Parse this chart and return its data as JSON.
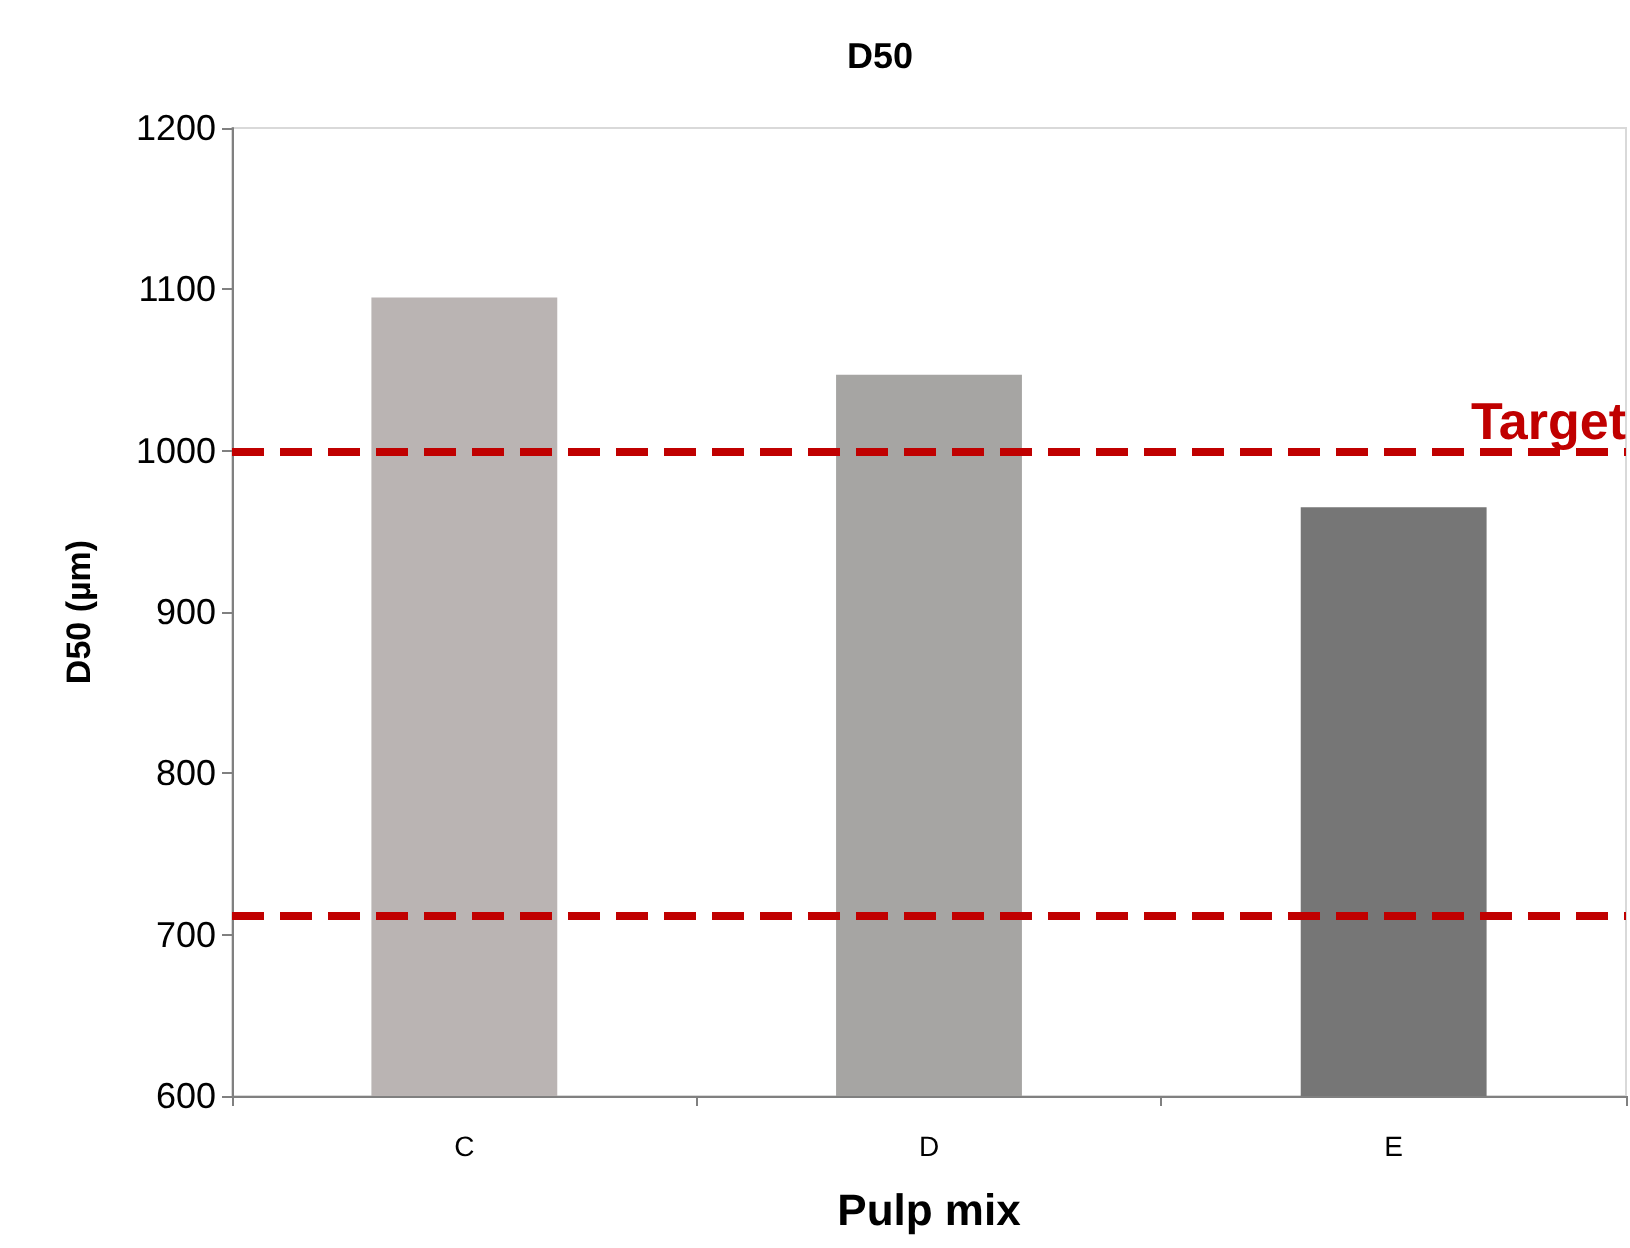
{
  "chart_data": {
    "type": "bar",
    "title": "D50",
    "xlabel": "Pulp mix",
    "ylabel": "D50 (µm)",
    "categories": [
      "C",
      "D",
      "E"
    ],
    "values": [
      1095,
      1047,
      965
    ],
    "colors": [
      "#bab4b3",
      "#a6a5a3",
      "#767676"
    ],
    "ylim": [
      600,
      1200
    ],
    "yticks": [
      600,
      700,
      800,
      900,
      1000,
      1100,
      1200
    ],
    "grid": false,
    "ref_lines": [
      {
        "axis": "y",
        "value": 1000,
        "label": "Target",
        "color": "#c00000",
        "line_style": "dashed"
      },
      {
        "axis": "y",
        "value": 712,
        "label": null,
        "color": "#c00000",
        "line_style": "dashed"
      }
    ]
  }
}
